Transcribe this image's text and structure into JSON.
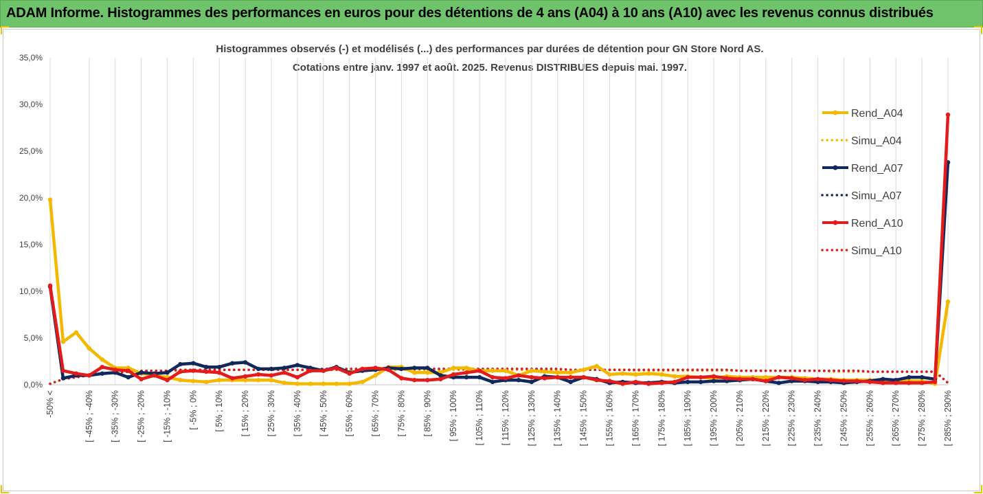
{
  "header": {
    "title": "ADAM Informe. Histogrammes des performances en euros pour des détentions de 4 ans (A04) à 10 ans (A10) avec les revenus connus distribués"
  },
  "chart_data": {
    "type": "line",
    "title": "Histogrammes observés (-) et modélisés (...) des performances par durées de détention pour GN Store Nord AS.",
    "subtitle": "Cotations entre janv. 1997 et août. 2025. Revenus DISTRIBUES depuis mai. 1997.",
    "xlabel": "",
    "ylabel": "",
    "ylim": [
      0,
      35
    ],
    "y_ticks": [
      "0,0%",
      "5,0%",
      "10,0%",
      "15,0%",
      "20,0%",
      "25,0%",
      "30,0%",
      "35,0%"
    ],
    "grid": "vertical",
    "legend_position": "right",
    "x_tick_labels": [
      "-50% <",
      "[ -45% ; -40%",
      "[ -35% ; -30%",
      "[ -25% ; -20%",
      "[ -15% ; -10%",
      "[ -5% ; 0%",
      "[ 5% ; 10%",
      "[ 15% ; 20%",
      "[ 25% ; 30%",
      "[ 35% ; 40%",
      "[ 45% ; 50%",
      "[ 55% ; 60%",
      "[ 65% ; 70%",
      "[ 75% ; 80%",
      "[ 85% ; 90%",
      "[ 95% ; 100%",
      "[ 105% ; 110%",
      "[ 115% ; 120%",
      "[ 125% ; 130%",
      "[ 135% ; 140%",
      "[ 145% ; 150%",
      "[ 155% ; 160%",
      "[ 165% ; 170%",
      "[ 175% ; 180%",
      "[ 185% ; 190%",
      "[ 195% ; 200%",
      "[ 205% ; 210%",
      "[ 215% ; 220%",
      "[ 225% ; 230%",
      "[ 235% ; 240%",
      "[ 245% ; 250%",
      "[ 255% ; 260%",
      "[ 265% ; 270%",
      "[ 275% ; 280%",
      "[ 285% ; 290%"
    ],
    "n_points": 70,
    "series": [
      {
        "name": "Rend_A04",
        "style": "solid",
        "color": "#f5b800",
        "values": [
          19.8,
          4.6,
          5.6,
          3.9,
          2.7,
          1.8,
          1.8,
          1.2,
          1.0,
          0.8,
          0.5,
          0.4,
          0.3,
          0.5,
          0.5,
          0.5,
          0.5,
          0.5,
          0.2,
          0.1,
          0.1,
          0.1,
          0.1,
          0.1,
          0.3,
          1.0,
          1.9,
          1.9,
          1.3,
          1.3,
          1.3,
          1.8,
          1.8,
          1.5,
          1.5,
          1.5,
          1.0,
          1.5,
          1.4,
          1.3,
          1.3,
          1.6,
          2.0,
          1.1,
          1.2,
          1.1,
          1.2,
          1.1,
          0.9,
          0.9,
          0.8,
          0.7,
          0.9,
          0.8,
          0.8,
          0.8,
          0.8,
          0.8,
          0.7,
          0.6,
          0.6,
          0.5,
          0.5,
          0.5,
          0.5,
          0.5,
          0.4,
          0.4,
          0.1,
          8.9
        ]
      },
      {
        "name": "Simu_A04",
        "style": "dotted",
        "color": "#f5b800",
        "values": [
          0.1,
          0.6,
          0.8,
          1.0,
          1.2,
          1.3,
          1.4,
          1.4,
          1.5,
          1.5,
          1.5,
          1.5,
          1.6,
          1.6,
          1.6,
          1.6,
          1.6,
          1.6,
          1.6,
          1.6,
          1.6,
          1.6,
          1.6,
          1.6,
          1.6,
          1.6,
          1.6,
          1.6,
          1.6,
          1.6,
          1.6,
          1.6,
          1.6,
          1.6,
          1.6,
          1.6,
          1.6,
          1.6,
          1.6,
          1.6,
          1.6,
          1.6,
          1.6,
          1.6,
          1.6,
          1.5,
          1.5,
          1.5,
          1.5,
          1.5,
          1.5,
          1.5,
          1.5,
          1.5,
          1.5,
          1.5,
          1.5,
          1.5,
          1.5,
          1.5,
          1.4,
          1.4,
          1.4,
          1.4,
          1.4,
          1.4,
          1.4,
          1.4,
          1.4,
          0.2
        ]
      },
      {
        "name": "Rend_A07",
        "style": "solid",
        "color": "#10295c",
        "values": [
          10.5,
          0.7,
          1.0,
          1.0,
          1.2,
          1.3,
          0.8,
          1.3,
          1.2,
          1.3,
          2.2,
          2.3,
          1.9,
          1.9,
          2.3,
          2.4,
          1.7,
          1.7,
          1.8,
          2.1,
          1.8,
          1.5,
          1.9,
          1.3,
          1.5,
          1.6,
          1.8,
          1.7,
          1.8,
          1.8,
          1.0,
          0.8,
          0.8,
          0.8,
          0.3,
          0.5,
          0.5,
          0.3,
          0.9,
          0.8,
          0.3,
          0.8,
          0.6,
          0.2,
          0.3,
          0.2,
          0.2,
          0.3,
          0.2,
          0.3,
          0.3,
          0.4,
          0.4,
          0.5,
          0.6,
          0.4,
          0.2,
          0.4,
          0.4,
          0.3,
          0.3,
          0.2,
          0.3,
          0.4,
          0.6,
          0.5,
          0.8,
          0.8,
          0.6,
          23.8
        ]
      },
      {
        "name": "Simu_A07",
        "style": "dotted",
        "color": "#10295c",
        "values": [
          0.1,
          0.6,
          0.8,
          1.0,
          1.2,
          1.3,
          1.4,
          1.5,
          1.5,
          1.5,
          1.6,
          1.6,
          1.6,
          1.6,
          1.6,
          1.6,
          1.6,
          1.6,
          1.6,
          1.6,
          1.6,
          1.7,
          1.7,
          1.7,
          1.7,
          1.7,
          1.7,
          1.7,
          1.7,
          1.7,
          1.7,
          1.7,
          1.7,
          1.7,
          1.7,
          1.7,
          1.7,
          1.7,
          1.7,
          1.7,
          1.6,
          1.6,
          1.6,
          1.6,
          1.6,
          1.6,
          1.6,
          1.6,
          1.6,
          1.6,
          1.6,
          1.6,
          1.6,
          1.5,
          1.5,
          1.5,
          1.5,
          1.5,
          1.5,
          1.5,
          1.5,
          1.5,
          1.5,
          1.4,
          1.4,
          1.4,
          1.4,
          1.4,
          1.4,
          0.2
        ]
      },
      {
        "name": "Rend_A10",
        "style": "solid",
        "color": "#e31b1b",
        "values": [
          10.6,
          1.5,
          1.2,
          1.0,
          1.9,
          1.6,
          1.5,
          0.6,
          1.0,
          0.5,
          1.4,
          1.5,
          1.4,
          1.3,
          0.7,
          0.9,
          1.1,
          1.0,
          1.3,
          0.8,
          1.5,
          1.5,
          1.8,
          1.2,
          1.7,
          1.8,
          1.6,
          0.7,
          0.5,
          0.5,
          0.6,
          1.1,
          1.3,
          1.5,
          0.8,
          0.7,
          1.0,
          0.8,
          0.7,
          0.8,
          0.8,
          0.8,
          0.5,
          0.4,
          0.1,
          0.3,
          0.1,
          0.2,
          0.3,
          0.8,
          0.8,
          0.9,
          0.7,
          0.6,
          0.6,
          0.4,
          0.8,
          0.7,
          0.5,
          0.6,
          0.5,
          0.4,
          0.4,
          0.3,
          0.2,
          0.2,
          0.2,
          0.2,
          0.3,
          28.9
        ]
      },
      {
        "name": "Simu_A10",
        "style": "dotted",
        "color": "#e31b1b",
        "values": [
          0.1,
          0.6,
          0.8,
          1.0,
          1.2,
          1.3,
          1.4,
          1.5,
          1.5,
          1.5,
          1.6,
          1.6,
          1.6,
          1.6,
          1.6,
          1.6,
          1.6,
          1.6,
          1.6,
          1.6,
          1.6,
          1.6,
          1.6,
          1.7,
          1.7,
          1.7,
          1.7,
          1.7,
          1.7,
          1.7,
          1.7,
          1.7,
          1.7,
          1.7,
          1.7,
          1.7,
          1.7,
          1.7,
          1.7,
          1.7,
          1.6,
          1.6,
          1.6,
          1.6,
          1.6,
          1.6,
          1.6,
          1.6,
          1.6,
          1.6,
          1.6,
          1.6,
          1.6,
          1.5,
          1.5,
          1.5,
          1.5,
          1.5,
          1.5,
          1.5,
          1.5,
          1.5,
          1.5,
          1.4,
          1.4,
          1.4,
          1.4,
          1.4,
          1.4,
          0.2
        ]
      }
    ]
  }
}
